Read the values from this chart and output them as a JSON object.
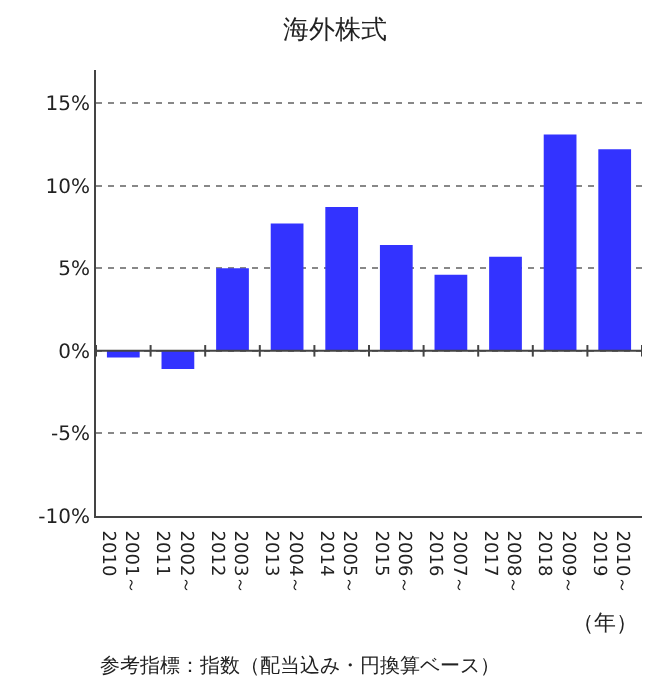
{
  "chart_data": {
    "type": "bar",
    "title": "海外株式",
    "categories": [
      "2001～\n2010",
      "2002～\n2011",
      "2003～\n2012",
      "2004～\n2013",
      "2005～\n2014",
      "2006～\n2015",
      "2007～\n2016",
      "2008～\n2017",
      "2009～\n2018",
      "2010～\n2019"
    ],
    "values": [
      -0.4,
      -1.1,
      5.0,
      7.7,
      8.7,
      6.4,
      4.6,
      5.7,
      13.1,
      12.2
    ],
    "color": "#3333ff",
    "xlabel": "（年）",
    "ylim": [
      -10,
      17
    ],
    "yticks": [
      {
        "value": -10,
        "label": "-10%"
      },
      {
        "value": -5,
        "label": "-5%"
      },
      {
        "value": 0,
        "label": "0%"
      },
      {
        "value": 5,
        "label": "5%"
      },
      {
        "value": 10,
        "label": "10%"
      },
      {
        "value": 15,
        "label": "15%"
      }
    ],
    "grid": "y",
    "annotations": [
      "参考指標：指数（配当込み・円換算ベース）"
    ]
  }
}
